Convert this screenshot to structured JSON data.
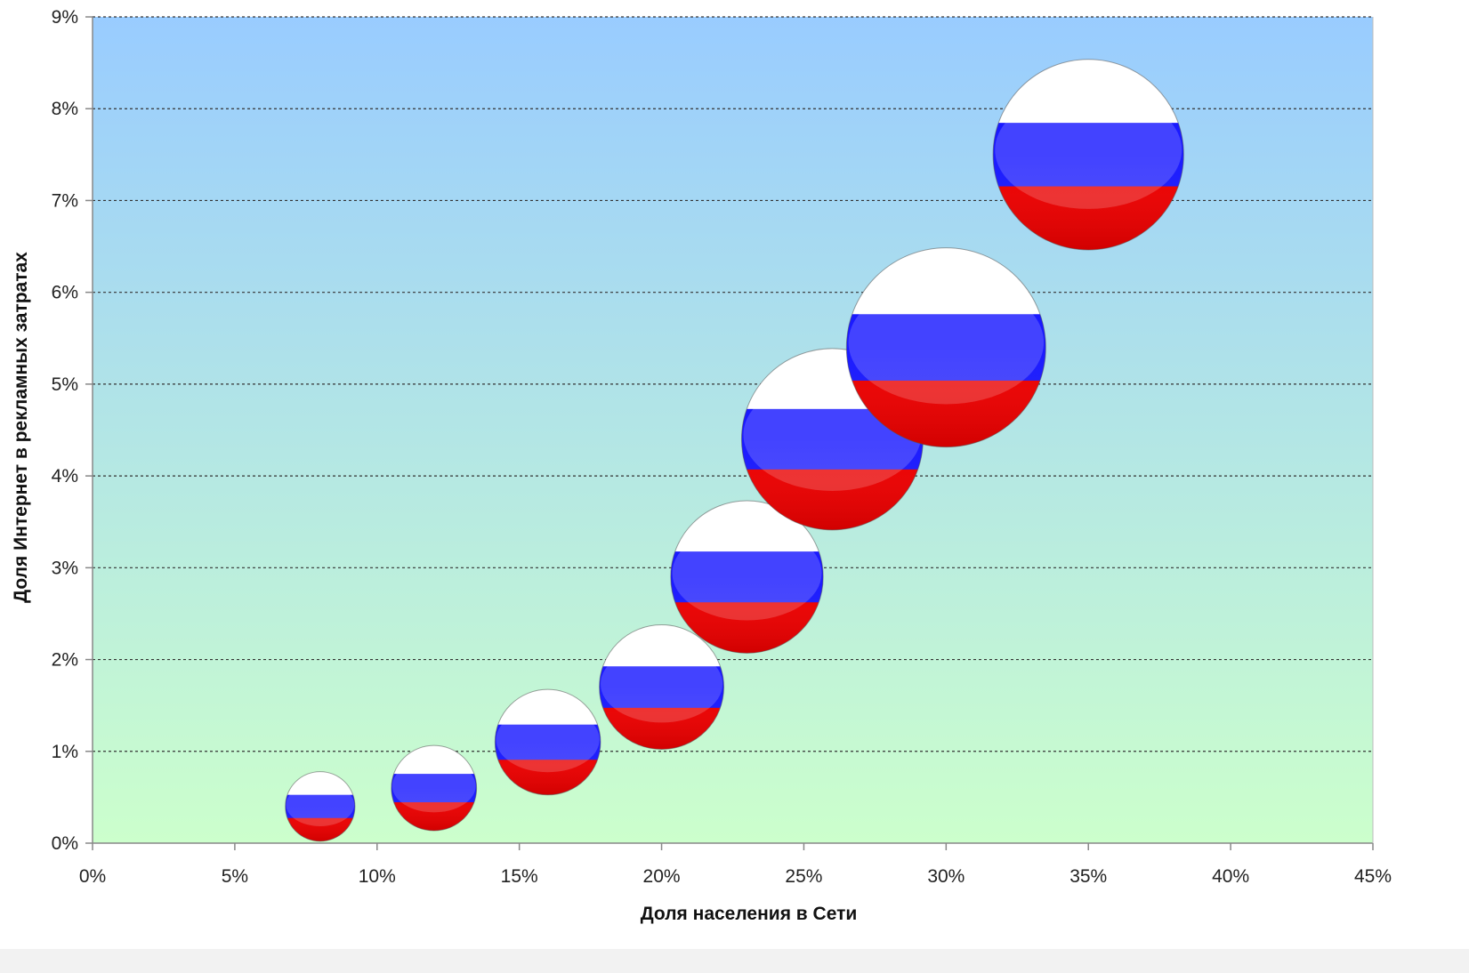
{
  "chart_data": {
    "type": "bubble",
    "xlabel": "Доля населения в Сети",
    "ylabel": "Доля Интернет в рекламных затратах",
    "xlim": [
      0,
      45
    ],
    "ylim": [
      0,
      9
    ],
    "x_ticks": [
      "0%",
      "5%",
      "10%",
      "15%",
      "20%",
      "25%",
      "30%",
      "35%",
      "40%",
      "45%"
    ],
    "y_ticks": [
      "0%",
      "1%",
      "2%",
      "3%",
      "4%",
      "5%",
      "6%",
      "7%",
      "8%",
      "9%"
    ],
    "x_tick_values": [
      0,
      5,
      10,
      15,
      20,
      25,
      30,
      35,
      40,
      45
    ],
    "y_tick_values": [
      0,
      1,
      2,
      3,
      4,
      5,
      6,
      7,
      8,
      9
    ],
    "points": [
      {
        "x": 8,
        "y": 0.4,
        "size": 1
      },
      {
        "x": 12,
        "y": 0.6,
        "size": 1.5
      },
      {
        "x": 16,
        "y": 1.1,
        "size": 2.3
      },
      {
        "x": 20,
        "y": 1.7,
        "size": 3.2
      },
      {
        "x": 23,
        "y": 2.9,
        "size": 4.8
      },
      {
        "x": 26,
        "y": 4.4,
        "size": 6.8
      },
      {
        "x": 30,
        "y": 5.4,
        "size": 8.2
      },
      {
        "x": 35,
        "y": 7.5,
        "size": 7.5
      }
    ],
    "grid": "horizontal dashed",
    "marker": "russian-flag-sphere",
    "colors": {
      "background_top": "#99ccff",
      "background_bottom": "#ccffcc",
      "flag_white": "#ffffff",
      "flag_blue": "#1a1aff",
      "flag_red": "#ee0000",
      "grid": "#333333",
      "axis": "#888888"
    }
  }
}
